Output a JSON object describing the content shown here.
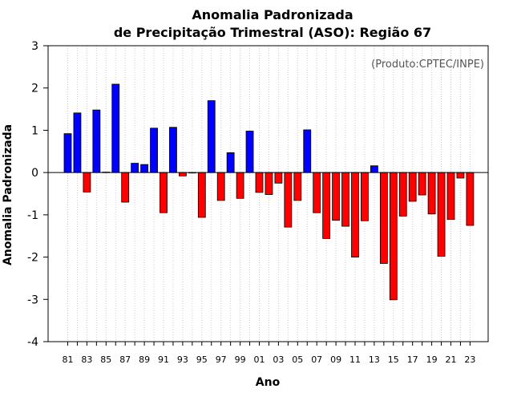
{
  "chart_data": {
    "type": "bar",
    "title": "Anomalia Padronizada",
    "subtitle": "de Precipitação Trimestral (ASO): Região 67",
    "xlabel": "Ano",
    "ylabel": "Anomalia Padronizada",
    "credit": "(Produto:CPTEC/INPE)",
    "ylim": [
      -4,
      3
    ],
    "yticks": [
      "-4",
      "-3",
      "-2",
      "-1",
      "0",
      "1",
      "2",
      "3"
    ],
    "grid": "vertical dotted",
    "positive_color": "#0000ff",
    "negative_color": "#ff0000",
    "categories": [
      "81",
      "82",
      "83",
      "84",
      "85",
      "86",
      "87",
      "88",
      "89",
      "90",
      "91",
      "92",
      "93",
      "94",
      "95",
      "96",
      "97",
      "98",
      "99",
      "00",
      "01",
      "02",
      "03",
      "04",
      "05",
      "06",
      "07",
      "08",
      "09",
      "10",
      "11",
      "12",
      "13",
      "14",
      "15",
      "16",
      "17",
      "18",
      "19",
      "20",
      "21",
      "22",
      "23"
    ],
    "tick_labels": [
      "81",
      "83",
      "85",
      "87",
      "89",
      "91",
      "93",
      "95",
      "97",
      "99",
      "01",
      "03",
      "05",
      "07",
      "09",
      "11",
      "13",
      "15",
      "17",
      "19",
      "21",
      "23"
    ],
    "values": [
      0.92,
      1.41,
      -0.46,
      1.48,
      0.01,
      2.09,
      -0.7,
      0.22,
      0.19,
      1.05,
      -0.95,
      1.07,
      -0.08,
      -0.01,
      -1.06,
      1.7,
      -0.66,
      0.47,
      -0.61,
      0.98,
      -0.47,
      -0.52,
      -0.25,
      -1.29,
      -0.66,
      1.01,
      -0.95,
      -1.56,
      -1.13,
      -1.27,
      -2.0,
      -1.14,
      0.16,
      -2.15,
      -3.01,
      -1.03,
      -0.68,
      -0.53,
      -0.98,
      -1.98,
      -1.11,
      -0.13,
      -1.25
    ]
  }
}
